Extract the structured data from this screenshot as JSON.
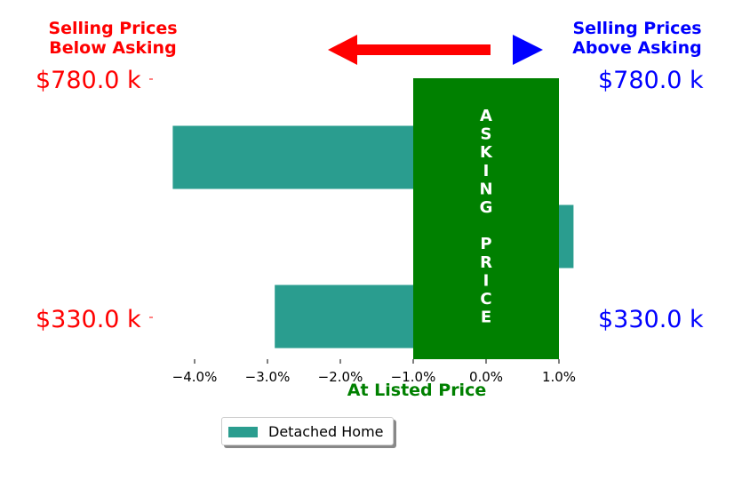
{
  "chart_data": {
    "type": "bar",
    "orientation": "horizontal",
    "xlabel": "At Listed Price",
    "xlim": [
      -4.3,
      1.2
    ],
    "x_ticks": [
      "−4.0%",
      "−3.0%",
      "−2.0%",
      "−1.0%",
      "0.0%",
      "1.0%"
    ],
    "x_tick_values": [
      -4,
      -3,
      -2,
      -1,
      0,
      1
    ],
    "series": [
      {
        "name": "Detached Home",
        "color": "#2a9d8f",
        "bars": [
          {
            "price": 780,
            "value": -4.3
          },
          {
            "price": 780,
            "value": 1.2
          },
          {
            "price": 330,
            "value": -2.9
          }
        ]
      }
    ],
    "left_labels": {
      "top": "$780.0 k",
      "bottom": "$330.0 k",
      "color": "#ff0000"
    },
    "right_labels": {
      "top": "$780.0 k",
      "bottom": "$330.0 k",
      "color": "#0000ff"
    },
    "band": {
      "from": -1,
      "to": 1,
      "color": "#008000",
      "letters": [
        "A",
        "S",
        "K",
        "I",
        "N",
        "G",
        "",
        "P",
        "R",
        "I",
        "C",
        "E"
      ]
    },
    "below_title": {
      "line1": "Selling Prices",
      "line2": "Below Asking",
      "color": "#ff0000"
    },
    "above_title": {
      "line1": "Selling Prices",
      "line2": "Above Asking",
      "color": "#0000ff"
    },
    "legend": {
      "placement": "bottom-center"
    }
  }
}
